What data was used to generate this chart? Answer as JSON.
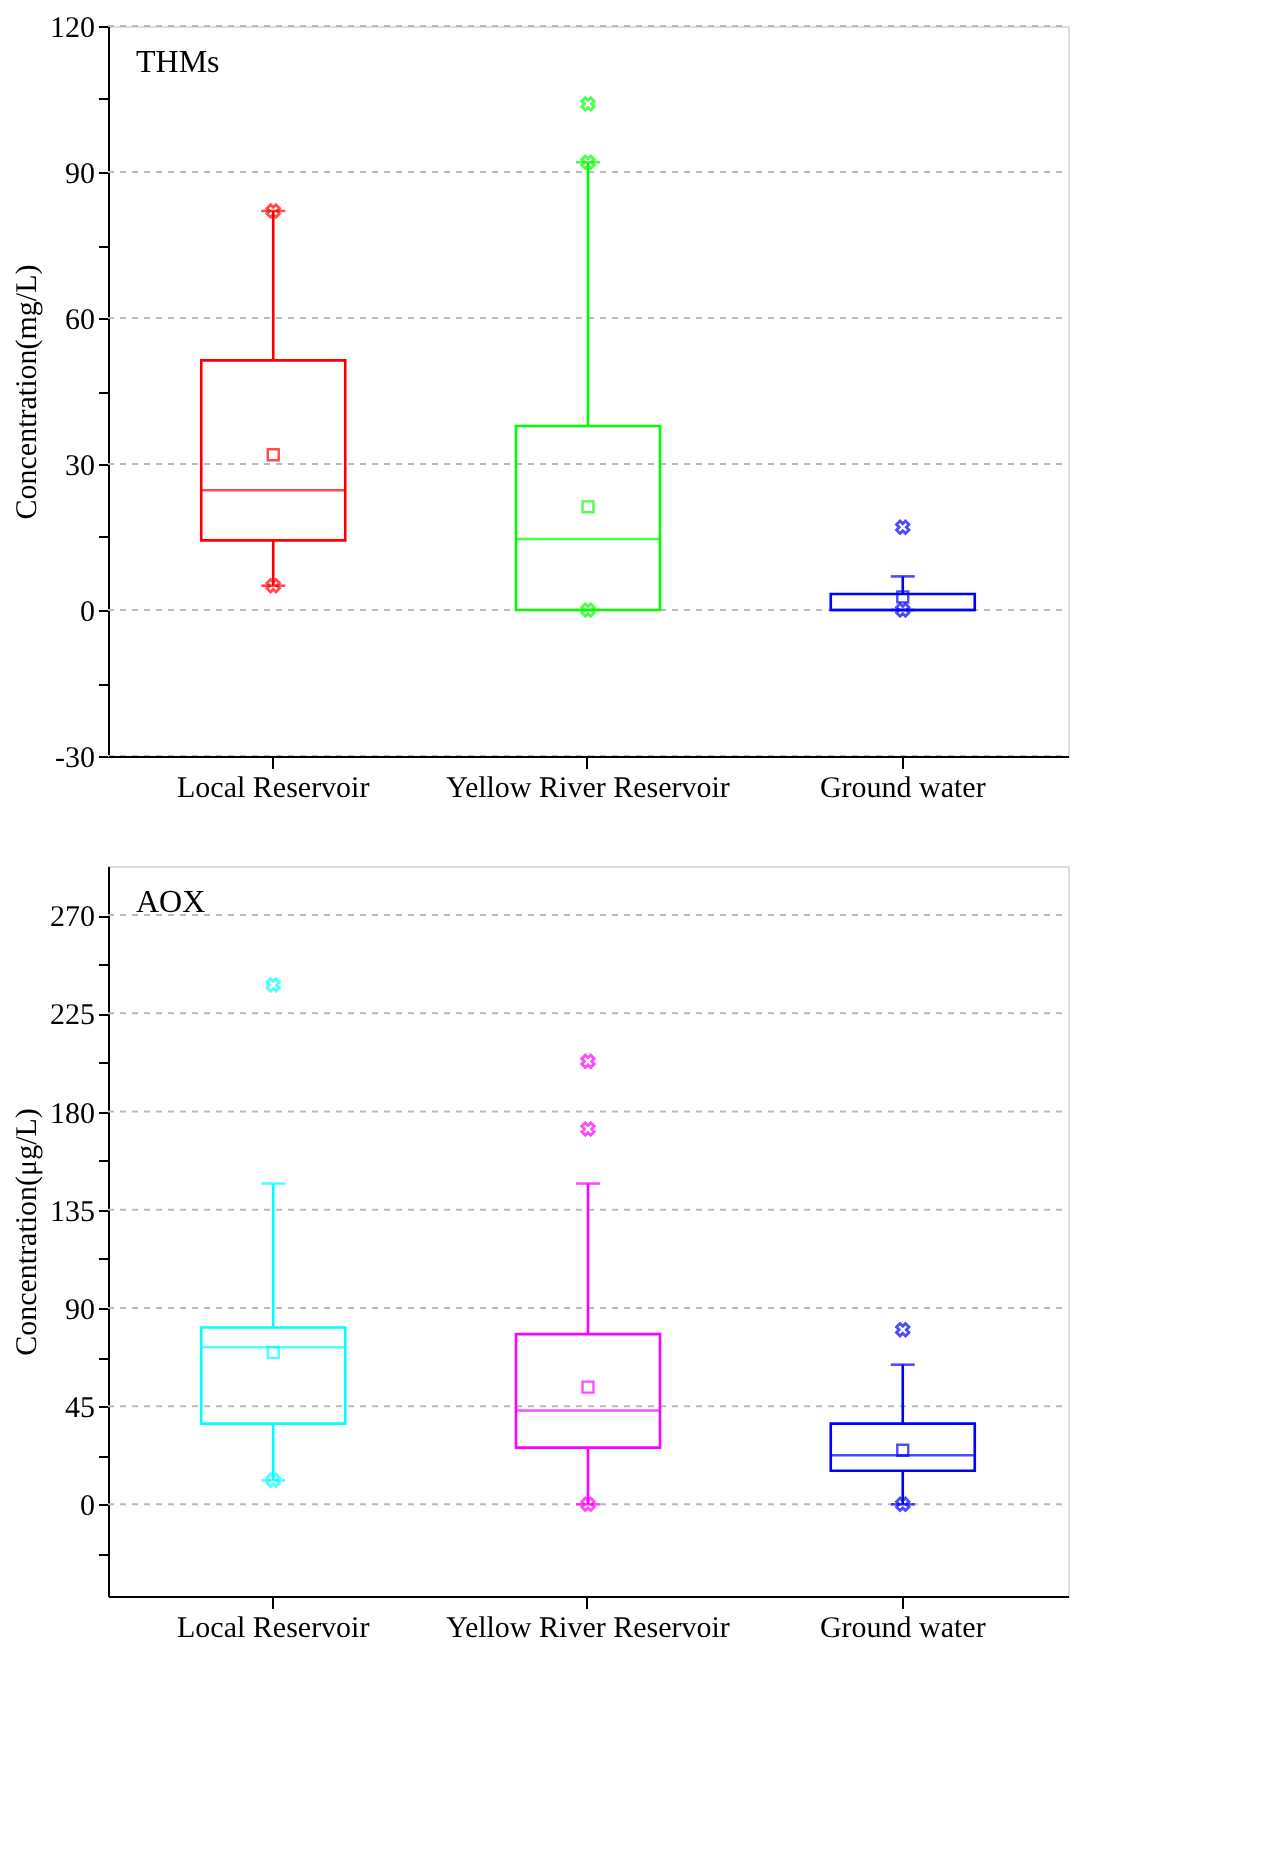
{
  "chart_data": [
    {
      "type": "box",
      "title": "THMs",
      "ylabel": "Concentration(mg/L)",
      "categories": [
        "Local Reservoir",
        "Yellow River Reservoir",
        "Ground  water"
      ],
      "colors": [
        "#ff0000",
        "#00ff00",
        "#0000ff"
      ],
      "boxes": [
        {
          "low": 5,
          "q1": 14.3,
          "median": 24.6,
          "q3": 51.3,
          "high": 82,
          "mean": 31.9,
          "outliers": [
            82,
            5
          ]
        },
        {
          "low": 0,
          "q1": 0,
          "median": 14.6,
          "q3": 37.8,
          "high": 92,
          "mean": 21.2,
          "outliers": [
            104,
            92,
            0
          ]
        },
        {
          "low": 0,
          "q1": 0,
          "median": 0,
          "q3": 3.3,
          "high": 6.9,
          "mean": 2.7,
          "outliers": [
            17,
            0
          ]
        }
      ],
      "ylim": [
        -30,
        120
      ],
      "yticks": [
        -30,
        {
          "value": -15,
          "label": null
        },
        0,
        {
          "value": 15,
          "label": null
        },
        30,
        {
          "value": 45,
          "label": null
        },
        60,
        {
          "value": 75,
          "label": null
        },
        90,
        {
          "value": 105,
          "label": null
        },
        120
      ],
      "grid": "y"
    },
    {
      "type": "box",
      "title": "AOX",
      "ylabel": "Concentration(μg/L)",
      "categories": [
        "Local Reservoir",
        "Yellow River Reservoir",
        "Ground  water"
      ],
      "colors": [
        "#00ffff",
        "#ff00ff",
        "#0000ff"
      ],
      "boxes": [
        {
          "low": 11,
          "q1": 37,
          "median": 72,
          "q3": 81,
          "high": 147,
          "mean": 69.6,
          "outliers": [
            238,
            11
          ]
        },
        {
          "low": 0,
          "q1": 26,
          "median": 43,
          "q3": 78,
          "high": 147,
          "mean": 53.7,
          "outliers": [
            203,
            172,
            0
          ]
        },
        {
          "low": 0,
          "q1": 15.4,
          "median": 22.5,
          "q3": 37,
          "high": 64,
          "mean": 24.8,
          "outliers": [
            80,
            0
          ]
        }
      ],
      "ylim": [
        -42,
        292.5
      ],
      "yticks": [
        {
          "value": -22.5,
          "label": null
        },
        0,
        {
          "value": 22.5,
          "label": null
        },
        45,
        {
          "value": 67.5,
          "label": null
        },
        90,
        {
          "value": 112.5,
          "label": null
        },
        135,
        {
          "value": 157.5,
          "label": null
        },
        180,
        {
          "value": 202.5,
          "label": null
        },
        225,
        {
          "value": 247.5,
          "label": null
        },
        270
      ],
      "grid": "y"
    }
  ]
}
